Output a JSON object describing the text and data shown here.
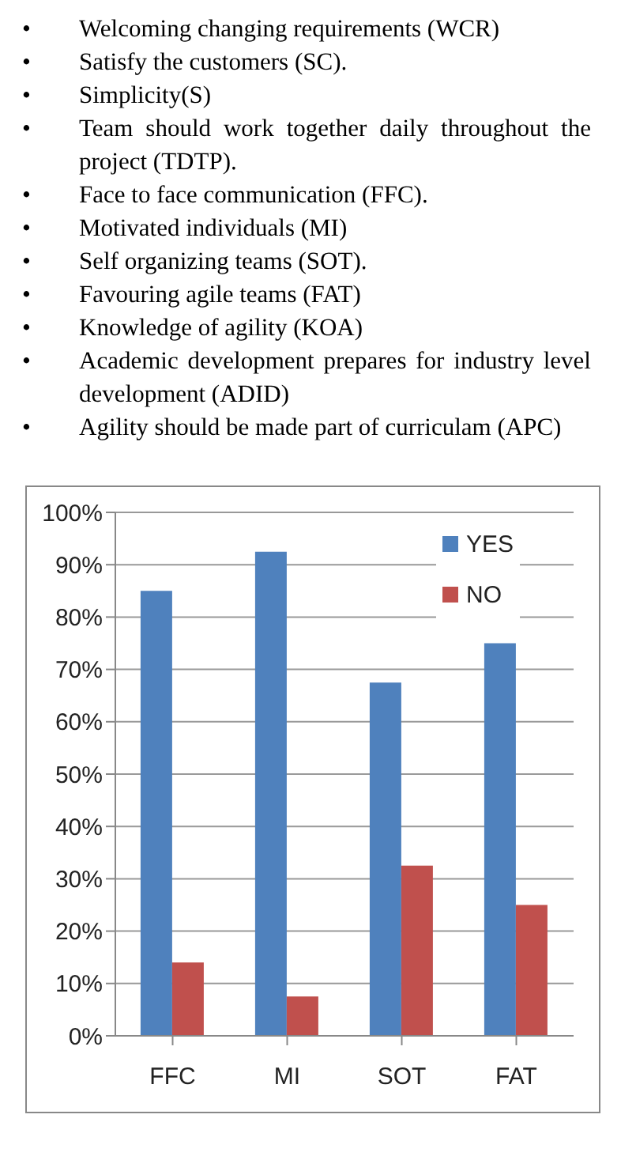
{
  "chart_data": {
    "type": "bar",
    "annotations": [
      "• Welcoming changing requirements (WCR)",
      "• Satisfy the customers (SC).",
      "• Simplicity(S)",
      "• Team should work together daily throughout the project (TDTP).",
      "• Face to face communication (FFC).",
      "• Motivated individuals (MI)",
      "• Self organizing teams (SOT).",
      "• Favouring agile teams (FAT)",
      "• Knowledge of agility (KOA)",
      "• Academic development prepares for industry level development (ADID)",
      "• Agility should be made part of curriculam (APC)"
    ],
    "categories": [
      "FFC",
      "MI",
      "SOT",
      "FAT"
    ],
    "series": [
      {
        "name": "YES",
        "color": "#4f81bd",
        "values": [
          85,
          92.5,
          67.5,
          75
        ]
      },
      {
        "name": "NO",
        "color": "#c0504d",
        "values": [
          14,
          7.5,
          32.5,
          25
        ]
      }
    ],
    "ylim": [
      0,
      100
    ],
    "yticks": [
      {
        "value": 0,
        "label": "0%"
      },
      {
        "value": 10,
        "label": "10%"
      },
      {
        "value": 20,
        "label": "20%"
      },
      {
        "value": 30,
        "label": "30%"
      },
      {
        "value": 40,
        "label": "40%"
      },
      {
        "value": 50,
        "label": "50%"
      },
      {
        "value": 60,
        "label": "60%"
      },
      {
        "value": 70,
        "label": "70%"
      },
      {
        "value": 80,
        "label": "80%"
      },
      {
        "value": 90,
        "label": "90%"
      },
      {
        "value": 100,
        "label": "100%"
      }
    ],
    "grid": "y",
    "legend": "top right"
  }
}
